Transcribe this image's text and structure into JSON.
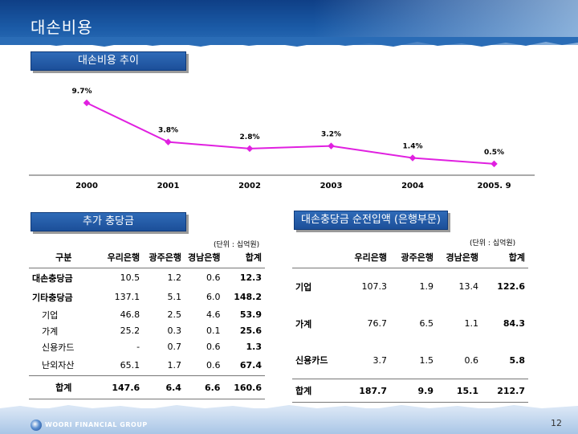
{
  "title": "대손비용",
  "sections": {
    "trend": "대손비용 추이",
    "provisions": "추가 충당금",
    "net": "대손충당금 순전입액 (은행부문)"
  },
  "chart_data": {
    "type": "line",
    "x": [
      "2000",
      "2001",
      "2002",
      "2003",
      "2004",
      "2005. 9"
    ],
    "values": [
      9.7,
      3.8,
      2.8,
      3.2,
      1.4,
      0.5
    ],
    "labels": [
      "9.7%",
      "3.8%",
      "2.8%",
      "3.2%",
      "1.4%",
      "0.5%"
    ],
    "color": "#e020e0"
  },
  "table1": {
    "unit": "(단위 : 십억원)",
    "headers": [
      "구분",
      "우리은행",
      "광주은행",
      "경남은행",
      "합계"
    ],
    "rows": [
      [
        "대손충당금",
        "10.5",
        "1.2",
        "0.6",
        "12.3"
      ],
      [
        "기타충당금",
        "137.1",
        "5.1",
        "6.0",
        "148.2"
      ],
      [
        "기업",
        "46.8",
        "2.5",
        "4.6",
        "53.9"
      ],
      [
        "가계",
        "25.2",
        "0.3",
        "0.1",
        "25.6"
      ],
      [
        "신용카드",
        "-",
        "0.7",
        "0.6",
        "1.3"
      ],
      [
        "난외자산",
        "65.1",
        "1.7",
        "0.6",
        "67.4"
      ]
    ],
    "total": [
      "합계",
      "147.6",
      "6.4",
      "6.6",
      "160.6"
    ]
  },
  "table2": {
    "unit": "(단위 : 십억원)",
    "headers": [
      "",
      "우리은행",
      "광주은행",
      "경남은행",
      "합계"
    ],
    "rows": [
      [
        "기업",
        "107.3",
        "1.9",
        "13.4",
        "122.6"
      ],
      [
        "가계",
        "76.7",
        "6.5",
        "1.1",
        "84.3"
      ],
      [
        "신용카드",
        "3.7",
        "1.5",
        "0.6",
        "5.8"
      ]
    ],
    "total": [
      "합계",
      "187.7",
      "9.9",
      "15.1",
      "212.7"
    ]
  },
  "footer": {
    "logo": "WOORI FINANCIAL GROUP",
    "page": "12"
  }
}
